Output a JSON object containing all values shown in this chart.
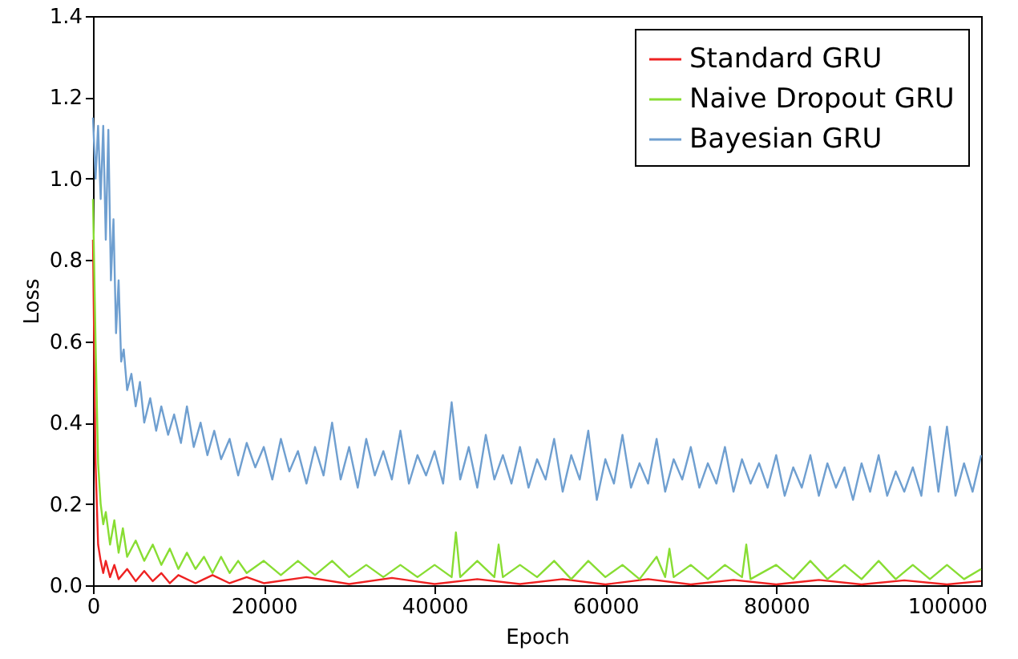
{
  "chart_data": {
    "type": "line",
    "xlabel": "Epoch",
    "ylabel": "Loss",
    "xlim": [
      0,
      104000
    ],
    "xticks": [
      0,
      20000,
      40000,
      60000,
      80000,
      100000
    ],
    "ylim": [
      0,
      1.4
    ],
    "yticks": [
      {
        "value": 0,
        "label": "0.0"
      },
      {
        "value": 0.2,
        "label": "0.2"
      },
      {
        "value": 0.4,
        "label": "0.4"
      },
      {
        "value": 0.6,
        "label": "0.6"
      },
      {
        "value": 0.8,
        "label": "0.8"
      },
      {
        "value": 1,
        "label": "1.0"
      },
      {
        "value": 1.2,
        "label": "1.2"
      },
      {
        "value": 1.4,
        "label": "1.4"
      }
    ],
    "grid": false,
    "legend": "top right",
    "series": [
      {
        "name": "Standard GRU",
        "color": "#ee2222",
        "x": [
          0,
          300,
          600,
          900,
          1200,
          1500,
          2000,
          2500,
          3000,
          4000,
          5000,
          6000,
          7000,
          8000,
          9000,
          10000,
          12000,
          14000,
          16000,
          18000,
          20000,
          25000,
          30000,
          35000,
          40000,
          45000,
          50000,
          55000,
          60000,
          65000,
          70000,
          75000,
          80000,
          85000,
          90000,
          95000,
          100000,
          104000
        ],
        "values": [
          0.85,
          0.3,
          0.1,
          0.06,
          0.03,
          0.06,
          0.02,
          0.05,
          0.015,
          0.04,
          0.01,
          0.035,
          0.01,
          0.03,
          0.005,
          0.025,
          0.005,
          0.025,
          0.005,
          0.02,
          0.005,
          0.02,
          0.003,
          0.018,
          0.003,
          0.015,
          0.003,
          0.015,
          0.002,
          0.015,
          0.002,
          0.013,
          0.002,
          0.013,
          0.002,
          0.012,
          0.002,
          0.01
        ]
      },
      {
        "name": "Naive Dropout GRU",
        "color": "#88dd33",
        "x": [
          0,
          300,
          600,
          900,
          1200,
          1500,
          2000,
          2500,
          3000,
          3500,
          4000,
          5000,
          6000,
          7000,
          8000,
          9000,
          10000,
          11000,
          12000,
          13000,
          14000,
          15000,
          16000,
          17000,
          18000,
          20000,
          22000,
          24000,
          26000,
          28000,
          30000,
          32000,
          34000,
          36000,
          38000,
          40000,
          42000,
          42500,
          43000,
          45000,
          47000,
          47500,
          48000,
          50000,
          52000,
          54000,
          56000,
          58000,
          60000,
          62000,
          64000,
          66000,
          67000,
          67500,
          68000,
          70000,
          72000,
          74000,
          76000,
          76500,
          77000,
          80000,
          82000,
          84000,
          86000,
          88000,
          90000,
          92000,
          94000,
          96000,
          98000,
          100000,
          102000,
          104000
        ],
        "values": [
          0.95,
          0.6,
          0.3,
          0.2,
          0.15,
          0.18,
          0.1,
          0.16,
          0.08,
          0.14,
          0.07,
          0.11,
          0.06,
          0.1,
          0.05,
          0.09,
          0.04,
          0.08,
          0.04,
          0.07,
          0.03,
          0.07,
          0.03,
          0.06,
          0.03,
          0.06,
          0.025,
          0.06,
          0.025,
          0.06,
          0.02,
          0.05,
          0.02,
          0.05,
          0.02,
          0.05,
          0.02,
          0.13,
          0.02,
          0.06,
          0.02,
          0.1,
          0.02,
          0.05,
          0.02,
          0.06,
          0.015,
          0.06,
          0.02,
          0.05,
          0.015,
          0.07,
          0.02,
          0.09,
          0.02,
          0.05,
          0.015,
          0.05,
          0.02,
          0.1,
          0.015,
          0.05,
          0.015,
          0.06,
          0.015,
          0.05,
          0.015,
          0.06,
          0.015,
          0.05,
          0.015,
          0.05,
          0.015,
          0.04
        ]
      },
      {
        "name": "Bayesian GRU",
        "color": "#6f9fd0",
        "x": [
          0,
          300,
          600,
          900,
          1200,
          1500,
          1800,
          2100,
          2400,
          2700,
          3000,
          3300,
          3600,
          4000,
          4500,
          5000,
          5500,
          6000,
          6700,
          7400,
          8000,
          8800,
          9500,
          10300,
          11000,
          11800,
          12600,
          13400,
          14200,
          15000,
          16000,
          17000,
          18000,
          19000,
          20000,
          21000,
          22000,
          23000,
          24000,
          25000,
          26000,
          27000,
          28000,
          29000,
          30000,
          31000,
          32000,
          33000,
          34000,
          35000,
          36000,
          37000,
          38000,
          39000,
          40000,
          41000,
          42000,
          43000,
          44000,
          45000,
          46000,
          47000,
          48000,
          49000,
          50000,
          51000,
          52000,
          53000,
          54000,
          55000,
          56000,
          57000,
          58000,
          59000,
          60000,
          61000,
          62000,
          63000,
          64000,
          65000,
          66000,
          67000,
          68000,
          69000,
          70000,
          71000,
          72000,
          73000,
          74000,
          75000,
          76000,
          77000,
          78000,
          79000,
          80000,
          81000,
          82000,
          83000,
          84000,
          85000,
          86000,
          87000,
          88000,
          89000,
          90000,
          91000,
          92000,
          93000,
          94000,
          95000,
          96000,
          97000,
          98000,
          99000,
          100000,
          101000,
          102000,
          103000,
          104000
        ],
        "values": [
          1.15,
          1.0,
          1.13,
          0.95,
          1.13,
          0.85,
          1.12,
          0.75,
          0.9,
          0.62,
          0.75,
          0.55,
          0.58,
          0.48,
          0.52,
          0.44,
          0.5,
          0.4,
          0.46,
          0.38,
          0.44,
          0.37,
          0.42,
          0.35,
          0.44,
          0.34,
          0.4,
          0.32,
          0.38,
          0.31,
          0.36,
          0.27,
          0.35,
          0.29,
          0.34,
          0.26,
          0.36,
          0.28,
          0.33,
          0.25,
          0.34,
          0.27,
          0.4,
          0.26,
          0.34,
          0.24,
          0.36,
          0.27,
          0.33,
          0.26,
          0.38,
          0.25,
          0.32,
          0.27,
          0.33,
          0.25,
          0.45,
          0.26,
          0.34,
          0.24,
          0.37,
          0.26,
          0.32,
          0.25,
          0.34,
          0.24,
          0.31,
          0.26,
          0.36,
          0.23,
          0.32,
          0.26,
          0.38,
          0.21,
          0.31,
          0.25,
          0.37,
          0.24,
          0.3,
          0.25,
          0.36,
          0.23,
          0.31,
          0.26,
          0.34,
          0.24,
          0.3,
          0.25,
          0.34,
          0.23,
          0.31,
          0.25,
          0.3,
          0.24,
          0.32,
          0.22,
          0.29,
          0.24,
          0.32,
          0.22,
          0.3,
          0.24,
          0.29,
          0.21,
          0.3,
          0.23,
          0.32,
          0.22,
          0.28,
          0.23,
          0.29,
          0.22,
          0.39,
          0.23,
          0.39,
          0.22,
          0.3,
          0.23,
          0.32
        ]
      }
    ]
  }
}
